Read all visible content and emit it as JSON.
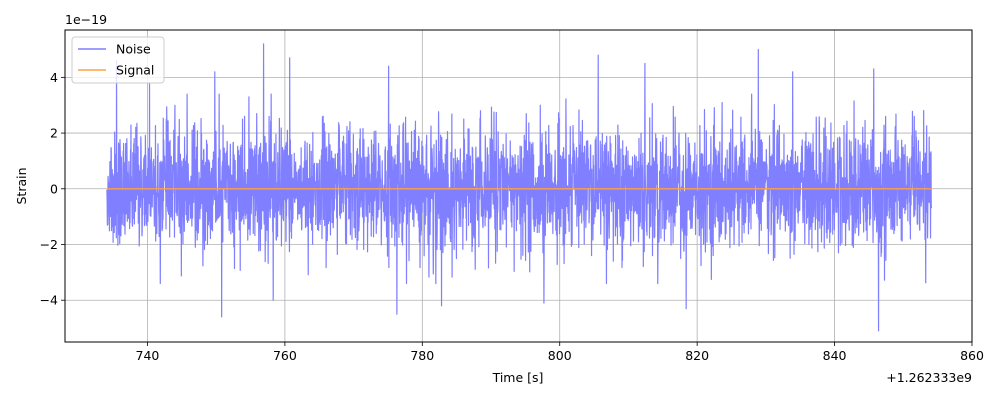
{
  "chart_data": {
    "type": "line",
    "xlabel": "Time [s]",
    "ylabel": "Strain",
    "y_scale_label": "1e−19",
    "x_offset_label": "+1.262333e9",
    "xlim": [
      728,
      860
    ],
    "ylim": [
      -5.5,
      5.7
    ],
    "x_ticks": [
      740,
      760,
      780,
      800,
      820,
      840,
      860
    ],
    "y_ticks": [
      -4,
      -2,
      0,
      2,
      4
    ],
    "grid": true,
    "legend_position": "upper-left",
    "series": [
      {
        "name": "Noise",
        "color": "#7f7fff",
        "x_range": [
          734.1,
          854.1
        ],
        "y_envelope": {
          "typical_max": 2.4,
          "typical_min": -2.4,
          "peak_max": 5.2,
          "peak_min": -5.1
        },
        "peaks": [
          {
            "x": 735.5,
            "y": 4.6
          },
          {
            "x": 740.3,
            "y": 3.8
          },
          {
            "x": 749.8,
            "y": 4.2
          },
          {
            "x": 756.9,
            "y": 5.2
          },
          {
            "x": 760.7,
            "y": 4.7
          },
          {
            "x": 775.1,
            "y": 4.4
          },
          {
            "x": 805.6,
            "y": 4.8
          },
          {
            "x": 812.4,
            "y": 4.5
          },
          {
            "x": 828.9,
            "y": 5.0
          },
          {
            "x": 833.9,
            "y": 4.2
          },
          {
            "x": 845.7,
            "y": 4.3
          },
          {
            "x": 750.8,
            "y": -4.6
          },
          {
            "x": 758.3,
            "y": -4.0
          },
          {
            "x": 776.3,
            "y": -4.5
          },
          {
            "x": 782.8,
            "y": -4.2
          },
          {
            "x": 797.7,
            "y": -4.1
          },
          {
            "x": 818.4,
            "y": -4.3
          },
          {
            "x": 846.4,
            "y": -5.1
          }
        ]
      },
      {
        "name": "Signal",
        "color": "#ffa040",
        "x": [
          734.1,
          854.1
        ],
        "y": [
          0,
          0
        ]
      }
    ]
  }
}
